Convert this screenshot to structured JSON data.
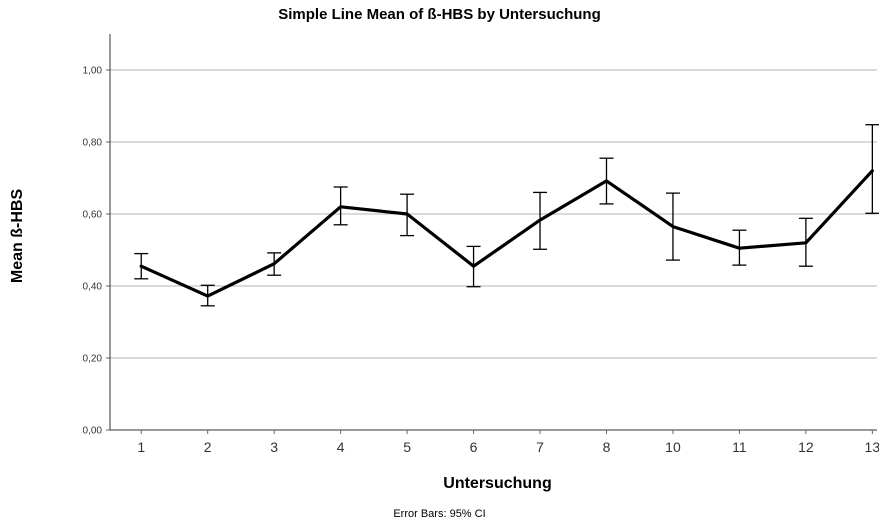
{
  "chart_data": {
    "type": "line",
    "title": "Simple Line Mean of ß-HBS by Untersuchung",
    "xlabel": "Untersuchung",
    "ylabel": "Mean ß-HBS",
    "footer": "Error Bars: 95% CI",
    "categories": [
      "1",
      "2",
      "3",
      "4",
      "5",
      "6",
      "7",
      "8",
      "10",
      "11",
      "12",
      "13"
    ],
    "ylim": [
      0,
      1.1
    ],
    "yticks": [
      0,
      0.2,
      0.4,
      0.6,
      0.8,
      1.0
    ],
    "ytick_labels": [
      "0,00",
      "0,20",
      "0,40",
      "0,60",
      "0,80",
      "1,00"
    ],
    "grid": true,
    "series": [
      {
        "values": [
          0.455,
          0.372,
          0.462,
          0.62,
          0.6,
          0.455,
          0.583,
          0.692,
          0.565,
          0.505,
          0.52,
          0.72
        ],
        "ci_lower": [
          0.42,
          0.345,
          0.43,
          0.57,
          0.54,
          0.398,
          0.502,
          0.628,
          0.472,
          0.458,
          0.455,
          0.602
        ],
        "ci_upper": [
          0.49,
          0.402,
          0.492,
          0.675,
          0.655,
          0.51,
          0.66,
          0.755,
          0.658,
          0.555,
          0.588,
          0.848
        ]
      }
    ]
  }
}
